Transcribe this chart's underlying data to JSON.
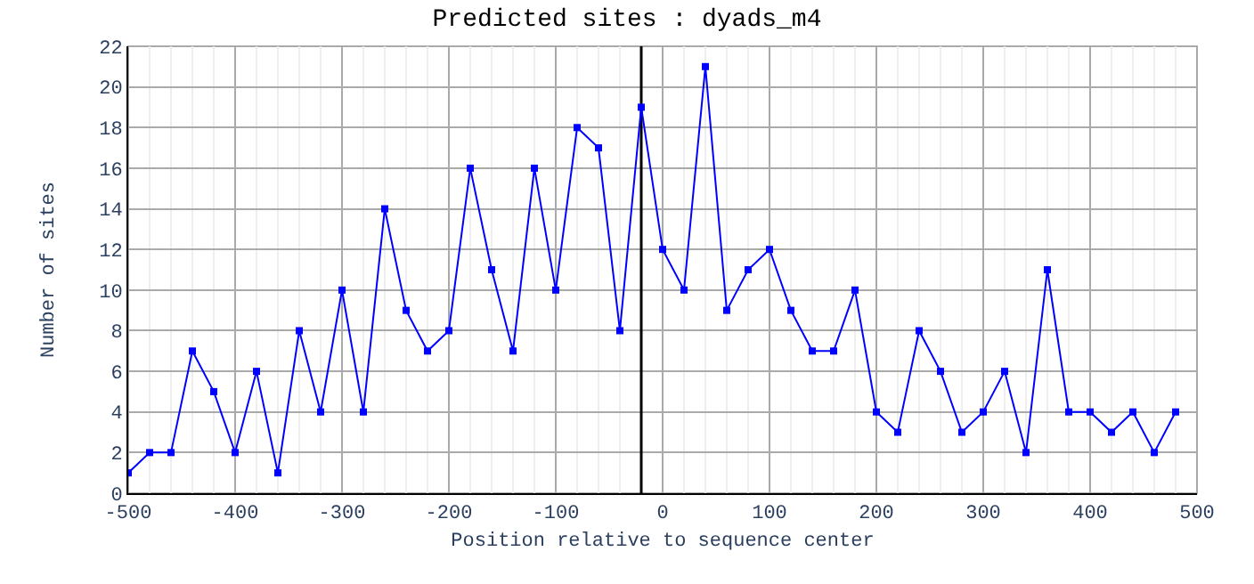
{
  "chart_data": {
    "type": "line",
    "title": "Predicted sites : dyads_m4",
    "xlabel": "Position relative to sequence center",
    "ylabel": "Number of sites",
    "x": [
      -500,
      -480,
      -460,
      -440,
      -420,
      -400,
      -380,
      -360,
      -340,
      -320,
      -300,
      -280,
      -260,
      -240,
      -220,
      -200,
      -180,
      -160,
      -140,
      -120,
      -100,
      -80,
      -60,
      -40,
      -20,
      0,
      20,
      40,
      60,
      80,
      100,
      120,
      140,
      160,
      180,
      200,
      220,
      240,
      260,
      280,
      300,
      320,
      340,
      360,
      380,
      400,
      420,
      440,
      460,
      480
    ],
    "series": [
      {
        "color": "#0000ff",
        "values": [
          1,
          2,
          2,
          7,
          5,
          2,
          6,
          1,
          8,
          4,
          10,
          4,
          14,
          9,
          7,
          8,
          16,
          11,
          7,
          16,
          10,
          18,
          17,
          8,
          19,
          12,
          10,
          21,
          9,
          11,
          12,
          9,
          7,
          7,
          10,
          4,
          3,
          8,
          6,
          3,
          4,
          6,
          2,
          11,
          4,
          4,
          3,
          4,
          2,
          4
        ]
      }
    ],
    "xlim": [
      -500,
      500
    ],
    "xticks": [
      -500,
      -400,
      -300,
      -200,
      -100,
      0,
      100,
      200,
      300,
      400,
      500
    ],
    "ylim": [
      0,
      22
    ],
    "yticks": [
      0,
      2,
      4,
      6,
      8,
      10,
      12,
      14,
      16,
      18,
      20,
      22
    ],
    "ref_lines": [
      {
        "axis": "x",
        "value": -20,
        "color": "#000000"
      }
    ],
    "grid": true,
    "marker": "square",
    "line_style": "solid"
  }
}
